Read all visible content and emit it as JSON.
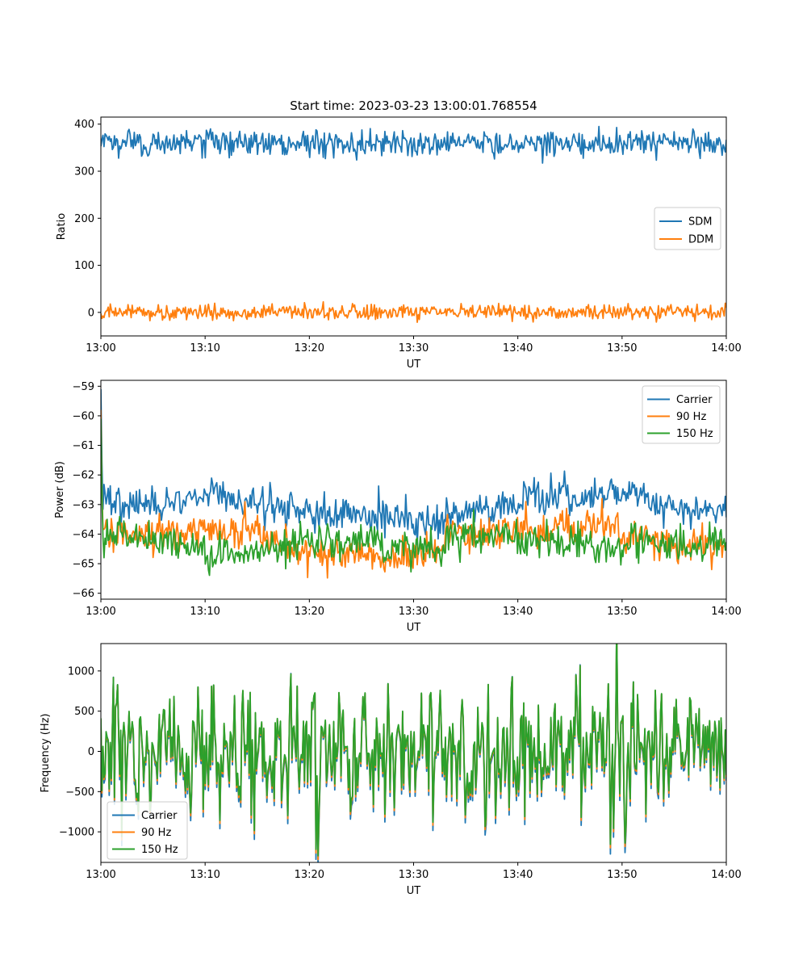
{
  "figure": {
    "title": "Start time: 2023-03-23 13:00:01.768554"
  },
  "chart_data": [
    {
      "type": "line",
      "xlabel": "UT",
      "ylabel": "Ratio",
      "xlim": [
        "13:00",
        "14:00"
      ],
      "ylim": [
        -50,
        415
      ],
      "xticks": [
        "13:00",
        "13:10",
        "13:20",
        "13:30",
        "13:40",
        "13:50",
        "14:00"
      ],
      "yticks": [
        0,
        100,
        200,
        300,
        400
      ],
      "legend_position": "center-right",
      "grid": false,
      "series": [
        {
          "name": "SDM",
          "color": "#1f77b4",
          "mean": 360,
          "spread": 14,
          "range": [
            305,
            395
          ],
          "points": 600
        },
        {
          "name": "DDM",
          "color": "#ff7f0e",
          "mean": 0,
          "spread": 8,
          "range": [
            -28,
            27
          ],
          "points": 600
        }
      ]
    },
    {
      "type": "line",
      "xlabel": "UT",
      "ylabel": "Power (dB)",
      "xlim": [
        "13:00",
        "14:00"
      ],
      "ylim": [
        -66.2,
        -58.8
      ],
      "xticks": [
        "13:00",
        "13:10",
        "13:20",
        "13:30",
        "13:40",
        "13:50",
        "14:00"
      ],
      "yticks": [
        -59,
        -60,
        -61,
        -62,
        -63,
        -64,
        -65,
        -66
      ],
      "legend_position": "top-right",
      "grid": false,
      "series": [
        {
          "name": "Carrier",
          "color": "#1f77b4",
          "mean": -63.0,
          "spread": 0.3,
          "start": -59.1,
          "points": 600
        },
        {
          "name": "90 Hz",
          "color": "#ff7f0e",
          "mean": -64.1,
          "spread": 0.3,
          "start": -59.8,
          "points": 600
        },
        {
          "name": "150 Hz",
          "color": "#2ca02c",
          "mean": -64.2,
          "spread": 0.3,
          "start": -60.1,
          "points": 600
        }
      ]
    },
    {
      "type": "line",
      "xlabel": "UT",
      "ylabel": "Frequency (Hz)",
      "xlim": [
        "13:00",
        "14:00"
      ],
      "ylim": [
        -1380,
        1340
      ],
      "xticks": [
        "13:00",
        "13:10",
        "13:20",
        "13:30",
        "13:40",
        "13:50",
        "14:00"
      ],
      "yticks": [
        1000,
        500,
        0,
        -500,
        -1000
      ],
      "legend_position": "lower-left",
      "grid": false,
      "series": [
        {
          "name": "Carrier",
          "color": "#1f77b4",
          "mean": -40,
          "spread": 380,
          "range": [
            -1250,
            1150
          ],
          "points": 600
        },
        {
          "name": "90 Hz",
          "color": "#ff7f0e",
          "mean": 0,
          "spread": 380,
          "range": [
            -1200,
            1200
          ],
          "points": 600
        },
        {
          "name": "150 Hz",
          "color": "#2ca02c",
          "mean": 20,
          "spread": 380,
          "range": [
            -1180,
            1220
          ],
          "points": 600
        }
      ]
    }
  ]
}
